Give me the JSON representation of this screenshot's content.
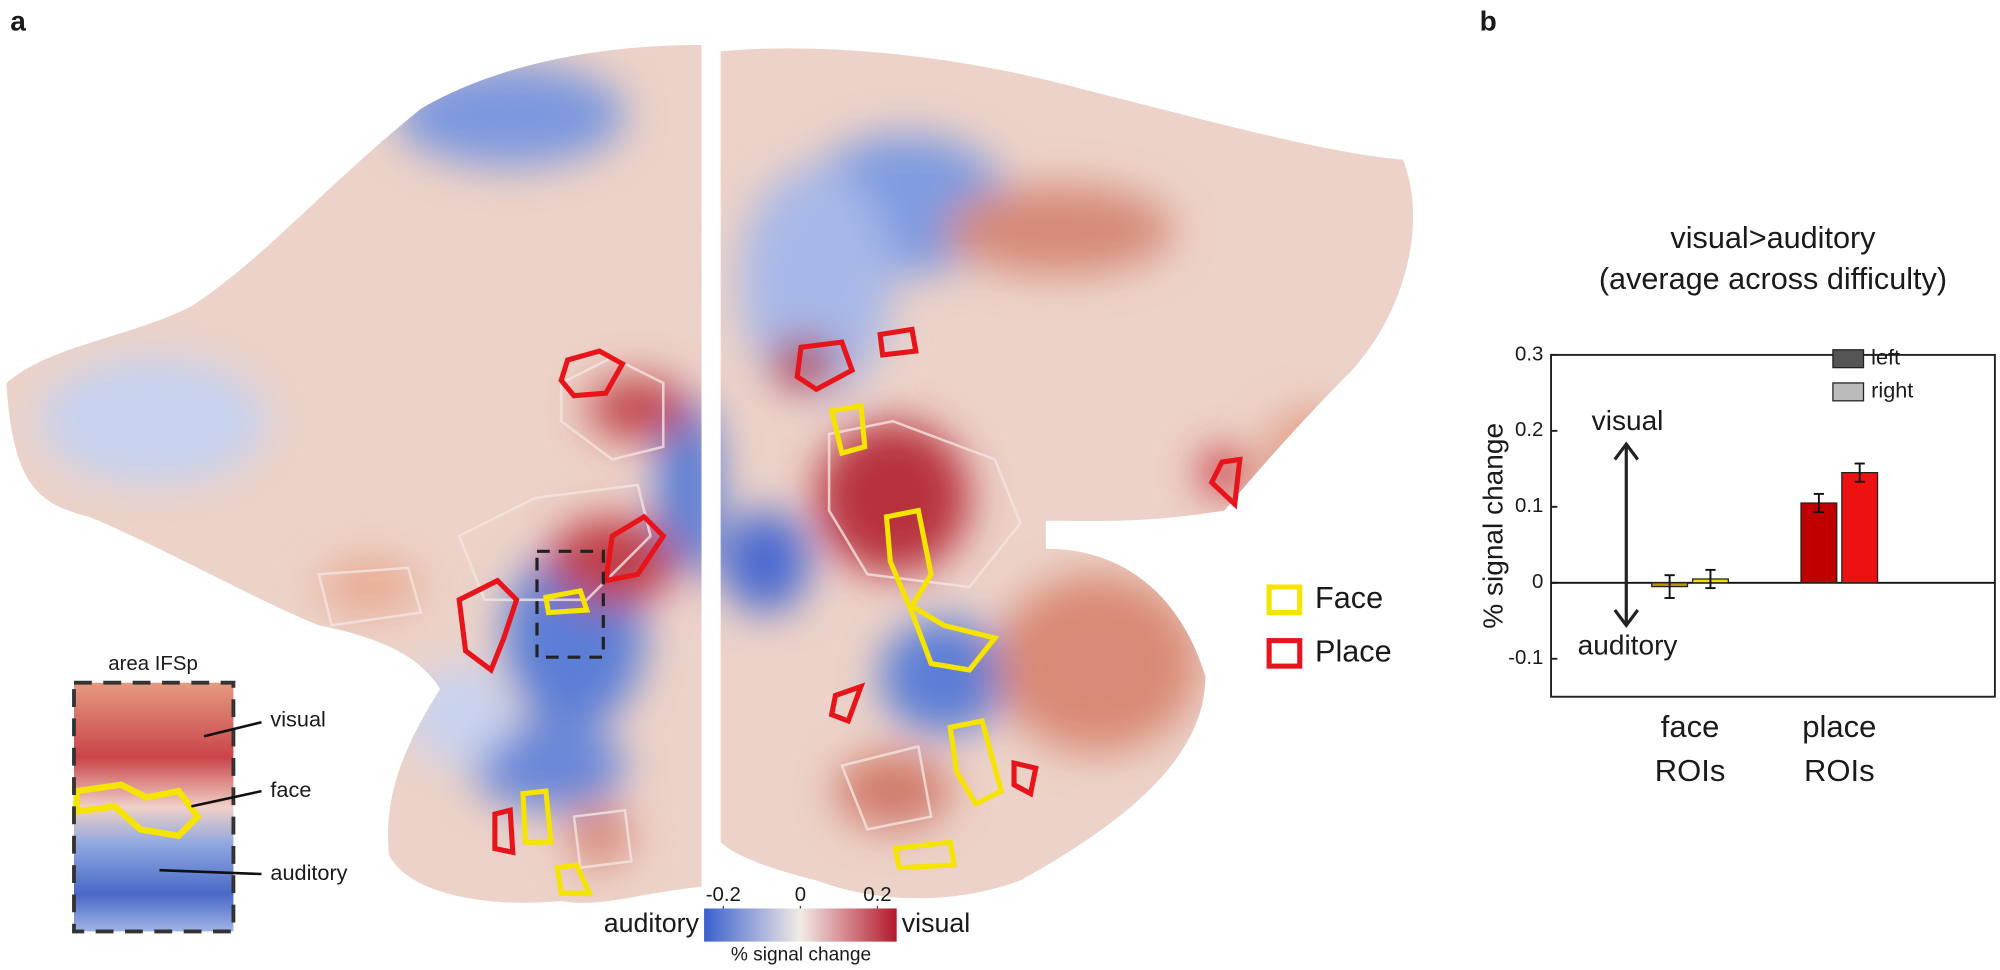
{
  "panel_labels": [
    "a",
    "b"
  ],
  "flatmap": {
    "legend": [
      {
        "label": "Face",
        "color": "#f5e400"
      },
      {
        "label": "Place",
        "color": "#e8141c"
      }
    ],
    "inset": {
      "title": "area IFSp",
      "labels": [
        "visual",
        "face",
        "auditory"
      ]
    },
    "colorbar": {
      "lim": [
        -0.25,
        0.25
      ],
      "ticks": [
        -0.2,
        0,
        0.2
      ],
      "left_label": "auditory",
      "right_label": "visual",
      "label": "% signal change"
    }
  },
  "chart_data": {
    "type": "bar",
    "title": "visual>auditory",
    "subtitle": "(average across difficulty)",
    "ylabel": "% signal change",
    "categories": [
      "face ROIs",
      "place ROIs"
    ],
    "series": [
      {
        "name": "left",
        "color": "#555555",
        "bar_colors": [
          "#b59a00",
          "#c00000"
        ],
        "values": [
          -0.005,
          0.105
        ],
        "errors": [
          0.015,
          0.012
        ]
      },
      {
        "name": "right",
        "color": "#bbbbbb",
        "bar_colors": [
          "#f0e000",
          "#ee1111"
        ],
        "values": [
          0.005,
          0.145
        ],
        "errors": [
          0.012,
          0.012
        ]
      }
    ],
    "ylim": [
      -0.15,
      0.3
    ],
    "yticks": [
      -0.1,
      0,
      0.1,
      0.2,
      0.3
    ],
    "annotations": [
      "visual",
      "auditory"
    ]
  }
}
